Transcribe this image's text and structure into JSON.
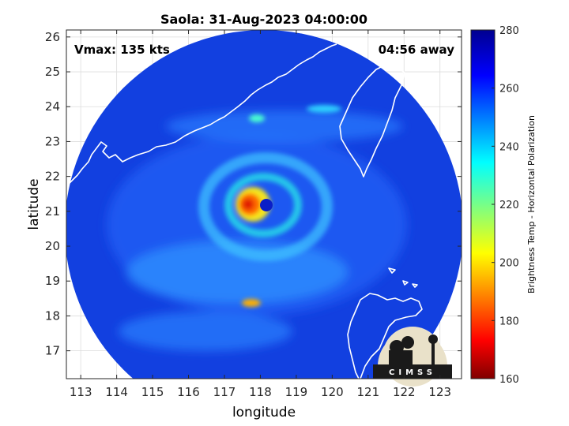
{
  "chart_data": {
    "type": "heatmap",
    "title": "Saola: 31-Aug-2023 04:00:00",
    "xlabel": "longitude",
    "ylabel": "latitude",
    "xlim": [
      112.6,
      123.6
    ],
    "ylim": [
      16.2,
      26.2
    ],
    "xticks": [
      113,
      114,
      115,
      116,
      117,
      118,
      119,
      120,
      121,
      122,
      123
    ],
    "yticks": [
      17,
      18,
      19,
      20,
      21,
      22,
      23,
      24,
      25,
      26
    ],
    "annotations": {
      "vmax": "Vmax: 135 kts",
      "away": "04:56 away"
    },
    "storm_center": {
      "lon": 118.3,
      "lat": 21.1
    },
    "colorbar": {
      "label": "Brightness Temp - Horizontal Polarization",
      "min": 160,
      "max": 280,
      "ticks": [
        160,
        180,
        200,
        220,
        240,
        260,
        280
      ]
    },
    "logo_text": "CIMSS"
  }
}
